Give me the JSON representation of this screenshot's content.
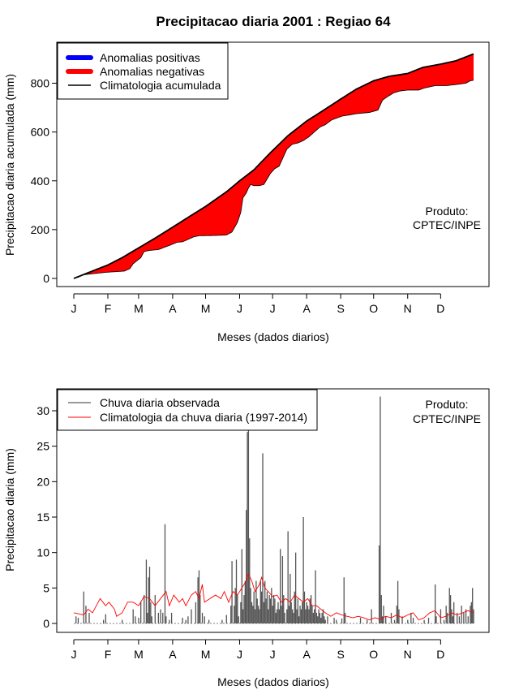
{
  "title": "Precipitacao diaria 2001 : Regiao 64",
  "month_ticks": [
    "J",
    "F",
    "M",
    "A",
    "M",
    "J",
    "J",
    "A",
    "S",
    "O",
    "N",
    "D"
  ],
  "chart_data": [
    {
      "type": "area",
      "name": "accumulated",
      "ylabel": "Precipitacao diaria acumulada (mm)",
      "xlabel": "Meses (dados diarios)",
      "ylim": [
        0,
        930
      ],
      "yticks": [
        0,
        200,
        400,
        600,
        800
      ],
      "legend": {
        "position": "top-left",
        "entries": [
          {
            "label": "Anomalias positivas",
            "color": "#0000ff",
            "style": "thick-line"
          },
          {
            "label": "Anomalias negativas",
            "color": "#ff0000",
            "style": "thick-line"
          },
          {
            "label": "Climatologia acumulada",
            "color": "#000000",
            "style": "line"
          }
        ]
      },
      "annotation": {
        "line1": "Produto:",
        "line2": "CPTEC/INPE"
      },
      "climatology_keypoints": [
        [
          1,
          0
        ],
        [
          15,
          25
        ],
        [
          32,
          55
        ],
        [
          45,
          85
        ],
        [
          60,
          125
        ],
        [
          75,
          165
        ],
        [
          91,
          210
        ],
        [
          105,
          250
        ],
        [
          121,
          295
        ],
        [
          140,
          355
        ],
        [
          152,
          400
        ],
        [
          165,
          445
        ],
        [
          180,
          515
        ],
        [
          196,
          585
        ],
        [
          213,
          645
        ],
        [
          227,
          685
        ],
        [
          244,
          735
        ],
        [
          258,
          775
        ],
        [
          274,
          810
        ],
        [
          288,
          828
        ],
        [
          305,
          840
        ],
        [
          319,
          865
        ],
        [
          335,
          878
        ],
        [
          349,
          892
        ],
        [
          365,
          920
        ]
      ],
      "observed_keypoints": [
        [
          1,
          0
        ],
        [
          5,
          5
        ],
        [
          10,
          15
        ],
        [
          20,
          20
        ],
        [
          30,
          25
        ],
        [
          40,
          28
        ],
        [
          47,
          30
        ],
        [
          52,
          40
        ],
        [
          55,
          60
        ],
        [
          62,
          85
        ],
        [
          65,
          110
        ],
        [
          70,
          115
        ],
        [
          78,
          118
        ],
        [
          82,
          125
        ],
        [
          88,
          135
        ],
        [
          95,
          148
        ],
        [
          100,
          150
        ],
        [
          104,
          158
        ],
        [
          110,
          170
        ],
        [
          115,
          175
        ],
        [
          130,
          176
        ],
        [
          140,
          178
        ],
        [
          145,
          190
        ],
        [
          150,
          230
        ],
        [
          153,
          270
        ],
        [
          155,
          330
        ],
        [
          158,
          350
        ],
        [
          160,
          370
        ],
        [
          162,
          385
        ],
        [
          165,
          380
        ],
        [
          170,
          380
        ],
        [
          174,
          385
        ],
        [
          180,
          430
        ],
        [
          184,
          450
        ],
        [
          188,
          460
        ],
        [
          195,
          530
        ],
        [
          200,
          550
        ],
        [
          205,
          555
        ],
        [
          210,
          565
        ],
        [
          215,
          580
        ],
        [
          220,
          600
        ],
        [
          225,
          620
        ],
        [
          230,
          630
        ],
        [
          236,
          650
        ],
        [
          245,
          665
        ],
        [
          252,
          670
        ],
        [
          258,
          675
        ],
        [
          270,
          680
        ],
        [
          278,
          690
        ],
        [
          282,
          730
        ],
        [
          285,
          740
        ],
        [
          292,
          760
        ],
        [
          298,
          768
        ],
        [
          305,
          772
        ],
        [
          315,
          772
        ],
        [
          320,
          780
        ],
        [
          330,
          790
        ],
        [
          340,
          790
        ],
        [
          350,
          795
        ],
        [
          358,
          800
        ],
        [
          362,
          810
        ],
        [
          365,
          812
        ]
      ]
    },
    {
      "type": "bar",
      "name": "daily",
      "ylabel": "Precipitacao diaria (mm)",
      "xlabel": "Meses (dados diarios)",
      "ylim": [
        0,
        33
      ],
      "yticks": [
        0,
        5,
        10,
        15,
        20,
        25,
        30
      ],
      "legend": {
        "position": "top-left",
        "entries": [
          {
            "label": "Chuva diaria observada",
            "color": "#333333",
            "style": "line"
          },
          {
            "label": "Climatologia da chuva diaria (1997-2014)",
            "color": "#ff0000",
            "style": "line"
          }
        ]
      },
      "annotation": {
        "line1": "Produto:",
        "line2": "CPTEC/INPE"
      },
      "observed_bars": [
        [
          3,
          1.0
        ],
        [
          5,
          0.8
        ],
        [
          10,
          4.5
        ],
        [
          12,
          2.5
        ],
        [
          15,
          1.5
        ],
        [
          28,
          0.5
        ],
        [
          30,
          1.3
        ],
        [
          45,
          0.5
        ],
        [
          55,
          2.0
        ],
        [
          57,
          1.0
        ],
        [
          60,
          0.8
        ],
        [
          62,
          3.0
        ],
        [
          65,
          4.0
        ],
        [
          67,
          9.0
        ],
        [
          68,
          1.5
        ],
        [
          69,
          6.5
        ],
        [
          70,
          8.0
        ],
        [
          71,
          3.0
        ],
        [
          72,
          1.0
        ],
        [
          75,
          4.0
        ],
        [
          78,
          1.5
        ],
        [
          80,
          2.0
        ],
        [
          82,
          1.5
        ],
        [
          84,
          14.0
        ],
        [
          85,
          1.0
        ],
        [
          88,
          0.5
        ],
        [
          90,
          1.5
        ],
        [
          100,
          0.8
        ],
        [
          103,
          0.5
        ],
        [
          105,
          1.0
        ],
        [
          108,
          2.0
        ],
        [
          112,
          3.0
        ],
        [
          114,
          6.5
        ],
        [
          115,
          7.5
        ],
        [
          116,
          4.0
        ],
        [
          118,
          1.5
        ],
        [
          120,
          1.0
        ],
        [
          124,
          0.5
        ],
        [
          136,
          0.5
        ],
        [
          140,
          1.2
        ],
        [
          144,
          2.5
        ],
        [
          145,
          8.8
        ],
        [
          147,
          2.5
        ],
        [
          148,
          5.0
        ],
        [
          149,
          9.0
        ],
        [
          150,
          4.0
        ],
        [
          151,
          1.0
        ],
        [
          153,
          3.0
        ],
        [
          154,
          10.5
        ],
        [
          155,
          2.0
        ],
        [
          156,
          4.0
        ],
        [
          157,
          6.0
        ],
        [
          158,
          16.0
        ],
        [
          159,
          27.0
        ],
        [
          160,
          30.0
        ],
        [
          161,
          12.0
        ],
        [
          162,
          5.0
        ],
        [
          163,
          3.0
        ],
        [
          164,
          2.5
        ],
        [
          165,
          4.5
        ],
        [
          166,
          2.0
        ],
        [
          167,
          6.0
        ],
        [
          168,
          3.5
        ],
        [
          169,
          2.5
        ],
        [
          170,
          2.0
        ],
        [
          171,
          6.0
        ],
        [
          172,
          4.5
        ],
        [
          173,
          24.0
        ],
        [
          174,
          3.0
        ],
        [
          175,
          6.0
        ],
        [
          176,
          3.5
        ],
        [
          177,
          4.5
        ],
        [
          178,
          2.0
        ],
        [
          179,
          4.0
        ],
        [
          180,
          3.5
        ],
        [
          181,
          5.0
        ],
        [
          182,
          2.5
        ],
        [
          183,
          4.0
        ],
        [
          184,
          3.5
        ],
        [
          185,
          1.5
        ],
        [
          186,
          2.0
        ],
        [
          187,
          3.0
        ],
        [
          188,
          2.0
        ],
        [
          189,
          10.5
        ],
        [
          190,
          2.5
        ],
        [
          191,
          9.5
        ],
        [
          192,
          4.0
        ],
        [
          193,
          1.5
        ],
        [
          195,
          2.0
        ],
        [
          196,
          13.0
        ],
        [
          197,
          2.5
        ],
        [
          198,
          7.0
        ],
        [
          199,
          3.0
        ],
        [
          200,
          2.0
        ],
        [
          201,
          1.5
        ],
        [
          202,
          4.5
        ],
        [
          203,
          10.0
        ],
        [
          204,
          2.0
        ],
        [
          205,
          3.5
        ],
        [
          206,
          1.0
        ],
        [
          207,
          2.5
        ],
        [
          208,
          2.0
        ],
        [
          209,
          3.0
        ],
        [
          210,
          15.0
        ],
        [
          211,
          4.5
        ],
        [
          212,
          2.0
        ],
        [
          213,
          3.0
        ],
        [
          214,
          2.5
        ],
        [
          215,
          2.0
        ],
        [
          216,
          3.5
        ],
        [
          217,
          4.0
        ],
        [
          218,
          2.5
        ],
        [
          219,
          1.5
        ],
        [
          220,
          2.0
        ],
        [
          221,
          7.5
        ],
        [
          222,
          1.5
        ],
        [
          223,
          1.0
        ],
        [
          224,
          2.0
        ],
        [
          225,
          1.5
        ],
        [
          226,
          0.8
        ],
        [
          227,
          1.5
        ],
        [
          228,
          2.0
        ],
        [
          229,
          1.0
        ],
        [
          230,
          0.5
        ],
        [
          232,
          1.0
        ],
        [
          238,
          0.8
        ],
        [
          240,
          0.5
        ],
        [
          245,
          0.7
        ],
        [
          247,
          6.5
        ],
        [
          248,
          1.5
        ],
        [
          262,
          0.8
        ],
        [
          268,
          0.5
        ],
        [
          272,
          2.0
        ],
        [
          279,
          11.0
        ],
        [
          280,
          32.0
        ],
        [
          281,
          4.0
        ],
        [
          282,
          1.0
        ],
        [
          283,
          2.5
        ],
        [
          285,
          1.0
        ],
        [
          290,
          1.5
        ],
        [
          293,
          0.5
        ],
        [
          295,
          2.5
        ],
        [
          296,
          6.0
        ],
        [
          297,
          2.0
        ],
        [
          300,
          1.0
        ],
        [
          305,
          0.5
        ],
        [
          308,
          1.5
        ],
        [
          310,
          0.8
        ],
        [
          320,
          0.5
        ],
        [
          324,
          0.8
        ],
        [
          330,
          5.5
        ],
        [
          331,
          1.0
        ],
        [
          335,
          2.0
        ],
        [
          338,
          0.5
        ],
        [
          340,
          2.5
        ],
        [
          341,
          1.5
        ],
        [
          343,
          5.0
        ],
        [
          344,
          4.0
        ],
        [
          345,
          2.0
        ],
        [
          346,
          1.0
        ],
        [
          347,
          3.0
        ],
        [
          350,
          1.5
        ],
        [
          352,
          1.0
        ],
        [
          354,
          2.5
        ],
        [
          356,
          1.5
        ],
        [
          358,
          2.0
        ],
        [
          360,
          1.0
        ],
        [
          362,
          2.5
        ],
        [
          363,
          3.0
        ],
        [
          364,
          5.0
        ],
        [
          365,
          2.0
        ]
      ],
      "climatology_keypoints": [
        [
          1,
          1.5
        ],
        [
          10,
          1.2
        ],
        [
          14,
          2.0
        ],
        [
          18,
          1.5
        ],
        [
          25,
          3.5
        ],
        [
          30,
          2.5
        ],
        [
          33,
          3.0
        ],
        [
          38,
          2.0
        ],
        [
          40,
          1.0
        ],
        [
          45,
          1.5
        ],
        [
          50,
          3.0
        ],
        [
          55,
          3.0
        ],
        [
          60,
          2.5
        ],
        [
          65,
          3.8
        ],
        [
          70,
          3.5
        ],
        [
          75,
          2.5
        ],
        [
          80,
          3.5
        ],
        [
          85,
          4.5
        ],
        [
          88,
          2.5
        ],
        [
          92,
          4.0
        ],
        [
          97,
          3.0
        ],
        [
          100,
          3.5
        ],
        [
          103,
          2.5
        ],
        [
          108,
          4.0
        ],
        [
          112,
          4.5
        ],
        [
          115,
          3.5
        ],
        [
          118,
          5.5
        ],
        [
          120,
          3.0
        ],
        [
          125,
          3.5
        ],
        [
          130,
          4.0
        ],
        [
          135,
          3.5
        ],
        [
          138,
          4.5
        ],
        [
          142,
          3.0
        ],
        [
          146,
          4.5
        ],
        [
          150,
          4.0
        ],
        [
          154,
          5.0
        ],
        [
          158,
          6.0
        ],
        [
          160,
          7.0
        ],
        [
          163,
          6.0
        ],
        [
          166,
          4.5
        ],
        [
          170,
          5.5
        ],
        [
          172,
          6.5
        ],
        [
          175,
          5.0
        ],
        [
          178,
          4.5
        ],
        [
          182,
          3.8
        ],
        [
          186,
          4.0
        ],
        [
          190,
          3.0
        ],
        [
          194,
          3.5
        ],
        [
          198,
          3.0
        ],
        [
          202,
          4.0
        ],
        [
          206,
          3.5
        ],
        [
          210,
          3.0
        ],
        [
          214,
          3.5
        ],
        [
          218,
          2.5
        ],
        [
          222,
          2.5
        ],
        [
          226,
          2.0
        ],
        [
          230,
          1.5
        ],
        [
          235,
          1.0
        ],
        [
          240,
          1.5
        ],
        [
          245,
          1.2
        ],
        [
          250,
          1.0
        ],
        [
          255,
          0.8
        ],
        [
          260,
          1.0
        ],
        [
          265,
          0.8
        ],
        [
          270,
          0.5
        ],
        [
          275,
          0.8
        ],
        [
          280,
          0.6
        ],
        [
          285,
          1.0
        ],
        [
          290,
          0.8
        ],
        [
          295,
          1.2
        ],
        [
          300,
          0.8
        ],
        [
          305,
          1.2
        ],
        [
          310,
          1.5
        ],
        [
          315,
          0.5
        ],
        [
          320,
          0.8
        ],
        [
          325,
          1.5
        ],
        [
          330,
          1.8
        ],
        [
          335,
          0.8
        ],
        [
          340,
          1.0
        ],
        [
          345,
          1.5
        ],
        [
          350,
          1.2
        ],
        [
          355,
          1.5
        ],
        [
          360,
          1.8
        ],
        [
          365,
          1.5
        ]
      ]
    }
  ]
}
